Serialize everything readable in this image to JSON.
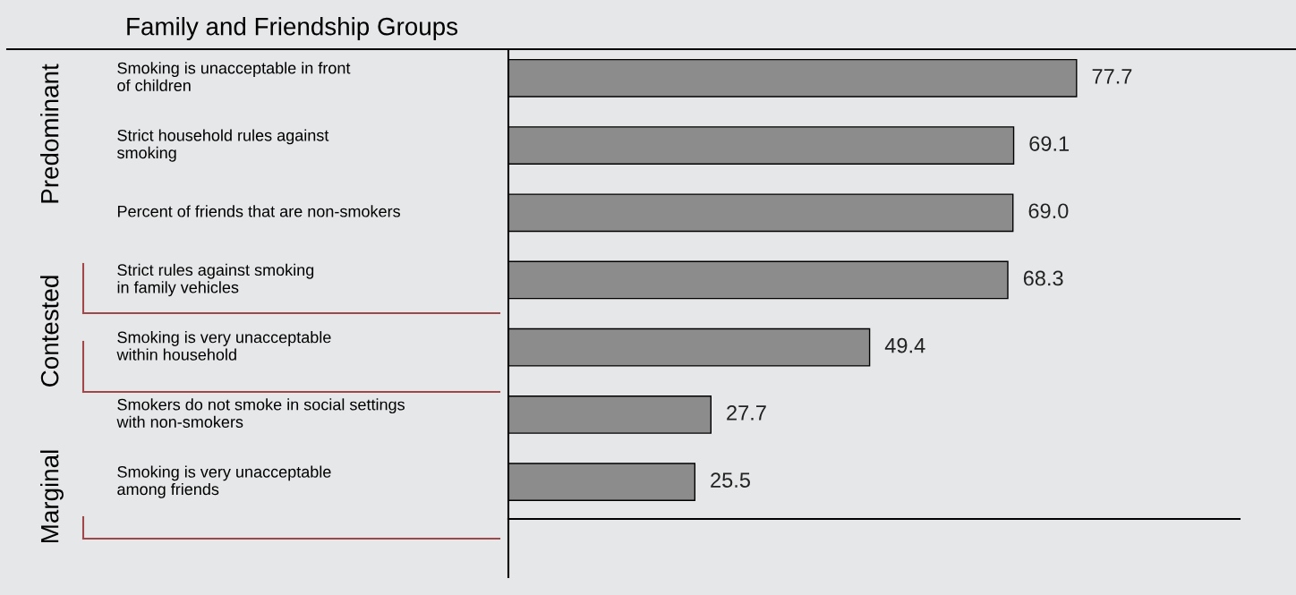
{
  "chart_data": {
    "type": "bar",
    "orientation": "horizontal",
    "title": "Family and Friendship Groups",
    "categories": [
      "Smoking is unacceptable in front\nof children",
      "Strict household rules against\nsmoking",
      "Percent of friends that are non-smokers",
      "Strict rules against smoking\nin family vehicles",
      "Smoking is very unacceptable\nwithin household",
      "Smokers do not smoke in social settings\nwith non-smokers",
      "Smoking is very unacceptable\namong friends"
    ],
    "values": [
      77.7,
      69.1,
      69.0,
      68.3,
      49.4,
      27.7,
      25.5
    ],
    "value_labels": [
      "77.7",
      "69.1",
      "69.0",
      "68.3",
      "49.4",
      "27.7",
      "25.5"
    ],
    "color": "#8c8c8c",
    "xlim": [
      0,
      100
    ],
    "grid": false,
    "legend": false,
    "annotations": [
      "Predominant",
      "Contested",
      "Marginal"
    ]
  }
}
